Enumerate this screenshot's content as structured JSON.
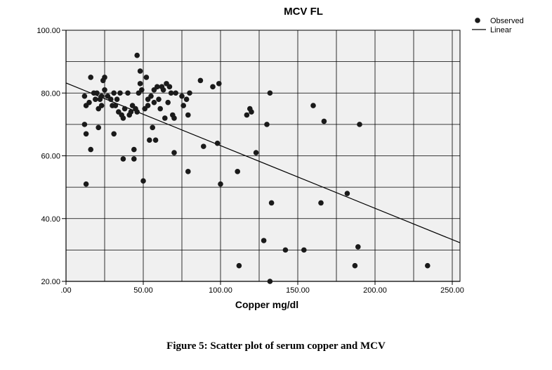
{
  "caption": "Figure 5: Scatter plot of serum copper and MCV",
  "chart_data": {
    "type": "scatter",
    "title": "MCV FL",
    "xlabel": "Copper mg/dl",
    "ylabel": "",
    "xlim": [
      0,
      255
    ],
    "ylim": [
      20,
      100
    ],
    "xticks": [
      0,
      50,
      100,
      150,
      200,
      250
    ],
    "xtick_labels": [
      ".00",
      "50.00",
      "100.00",
      "150.00",
      "200.00",
      "250.00"
    ],
    "yticks": [
      20,
      40,
      60,
      80,
      100
    ],
    "ytick_labels": [
      "20.00",
      "40.00",
      "60.00",
      "80.00",
      "100.00"
    ],
    "grid": true,
    "legend_position": "top-right",
    "legend": [
      {
        "label": "Observed",
        "marker": "dot"
      },
      {
        "label": "Linear",
        "marker": "line"
      }
    ],
    "colors": {
      "points": "#1a1a1a",
      "line": "#000000",
      "plot_background": "#f0f0f0",
      "grid": "#000000"
    },
    "series": [
      {
        "name": "Observed",
        "points": [
          [
            13,
            76
          ],
          [
            15,
            77
          ],
          [
            12,
            79
          ],
          [
            16,
            85
          ],
          [
            12,
            70
          ],
          [
            13,
            67
          ],
          [
            16,
            62
          ],
          [
            13,
            51
          ],
          [
            18,
            80
          ],
          [
            19,
            78
          ],
          [
            20,
            80
          ],
          [
            21,
            75
          ],
          [
            21,
            69
          ],
          [
            22,
            78
          ],
          [
            23,
            76
          ],
          [
            23,
            79
          ],
          [
            24,
            84
          ],
          [
            25,
            85
          ],
          [
            25,
            81
          ],
          [
            27,
            79
          ],
          [
            29,
            78
          ],
          [
            30,
            76
          ],
          [
            31,
            80
          ],
          [
            31,
            67
          ],
          [
            32,
            76
          ],
          [
            33,
            78
          ],
          [
            34,
            74
          ],
          [
            35,
            80
          ],
          [
            36,
            73
          ],
          [
            37,
            72
          ],
          [
            37,
            59
          ],
          [
            38,
            75
          ],
          [
            40,
            80
          ],
          [
            41,
            73
          ],
          [
            42,
            74
          ],
          [
            43,
            76
          ],
          [
            44,
            62
          ],
          [
            44,
            59
          ],
          [
            45,
            75
          ],
          [
            46,
            74
          ],
          [
            46,
            92
          ],
          [
            47,
            80
          ],
          [
            48,
            87
          ],
          [
            48,
            83
          ],
          [
            49,
            81
          ],
          [
            50,
            52
          ],
          [
            51,
            75
          ],
          [
            52,
            85
          ],
          [
            53,
            78
          ],
          [
            53,
            76
          ],
          [
            54,
            65
          ],
          [
            55,
            79
          ],
          [
            56,
            69
          ],
          [
            57,
            77
          ],
          [
            57,
            81
          ],
          [
            58,
            65
          ],
          [
            59,
            82
          ],
          [
            60,
            78
          ],
          [
            61,
            75
          ],
          [
            62,
            82
          ],
          [
            63,
            81
          ],
          [
            64,
            72
          ],
          [
            65,
            83
          ],
          [
            66,
            77
          ],
          [
            67,
            82
          ],
          [
            68,
            80
          ],
          [
            69,
            73
          ],
          [
            70,
            72
          ],
          [
            70,
            61
          ],
          [
            71,
            80
          ],
          [
            75,
            79
          ],
          [
            76,
            76
          ],
          [
            78,
            78
          ],
          [
            79,
            73
          ],
          [
            79,
            55
          ],
          [
            80,
            80
          ],
          [
            87,
            84
          ],
          [
            89,
            63
          ],
          [
            95,
            82
          ],
          [
            98,
            64
          ],
          [
            99,
            83
          ],
          [
            100,
            51
          ],
          [
            111,
            55
          ],
          [
            112,
            25
          ],
          [
            117,
            73
          ],
          [
            119,
            75
          ],
          [
            120,
            74
          ],
          [
            123,
            61
          ],
          [
            128,
            33
          ],
          [
            130,
            70
          ],
          [
            132,
            20
          ],
          [
            132,
            80
          ],
          [
            133,
            45
          ],
          [
            142,
            30
          ],
          [
            154,
            30
          ],
          [
            160,
            76
          ],
          [
            165,
            45
          ],
          [
            167,
            71
          ],
          [
            182,
            48
          ],
          [
            187,
            25
          ],
          [
            189,
            31
          ],
          [
            190,
            70
          ],
          [
            234,
            25
          ]
        ]
      },
      {
        "name": "Linear",
        "line": {
          "x": [
            0,
            255
          ],
          "y": [
            83.2,
            32.3
          ]
        }
      }
    ]
  }
}
